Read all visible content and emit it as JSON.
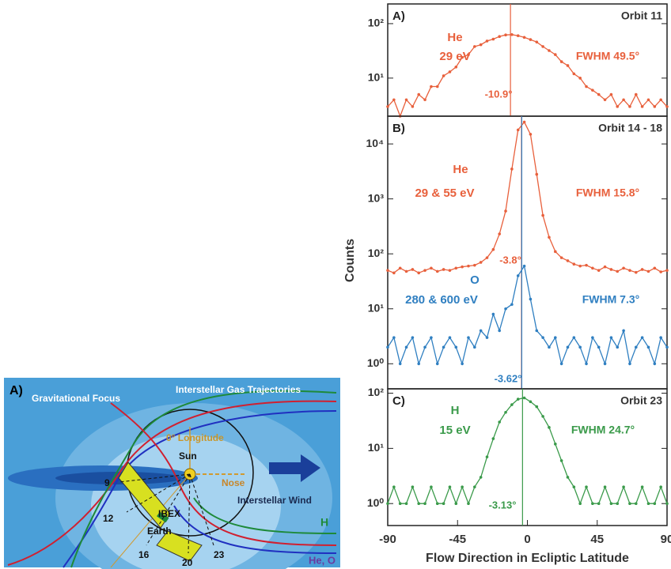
{
  "diagram": {
    "labels": [
      "A)",
      "Gravitational Focus",
      "Interstellar Gas Trajectories",
      "0° Longitude",
      "Sun",
      "Nose",
      "Interstellar Wind",
      "IBEX",
      "Earth",
      "9",
      "12",
      "16",
      "20",
      "23",
      "H",
      "He, O"
    ]
  },
  "chart_data": [
    {
      "type": "line",
      "title": "A)",
      "subtitle": "Orbit 11",
      "log_y": true,
      "xlim": [
        -90,
        90
      ],
      "ylim": [
        2,
        230
      ],
      "yticks": [
        {
          "value": 10,
          "label": "10¹"
        },
        {
          "value": 100,
          "label": "10²"
        }
      ],
      "x": [
        -90,
        -86,
        -82,
        -78,
        -74,
        -70,
        -66,
        -62,
        -58,
        -54,
        -50,
        -46,
        -42,
        -38,
        -34,
        -30,
        -26,
        -22,
        -18,
        -14,
        -10,
        -6,
        -2,
        2,
        6,
        10,
        14,
        18,
        22,
        26,
        30,
        34,
        38,
        42,
        46,
        50,
        54,
        58,
        62,
        66,
        70,
        74,
        78,
        82,
        86,
        90
      ],
      "series": [
        {
          "name": "He",
          "energy": "29 eV",
          "fwhm": "FWHM 49.5°",
          "center": -10.9,
          "center_label": "-10.9°",
          "color": "#e8603c",
          "values": [
            3,
            4,
            2,
            4,
            3,
            5,
            4,
            7,
            7,
            11,
            13,
            16,
            24,
            27,
            38,
            41,
            48,
            52,
            58,
            62,
            63,
            60,
            56,
            51,
            46,
            38,
            32,
            27,
            20,
            17,
            12,
            10,
            7,
            6,
            5,
            4,
            5,
            3,
            4,
            3,
            5,
            3,
            4,
            3,
            4,
            3
          ]
        }
      ]
    },
    {
      "type": "line",
      "title": "B)",
      "subtitle": "Orbit 14 - 18",
      "log_y": true,
      "y_label": "Counts",
      "xlim": [
        -90,
        90
      ],
      "ylim": [
        0.35,
        32000
      ],
      "yticks": [
        {
          "value": 1,
          "label": "10⁰"
        },
        {
          "value": 10,
          "label": "10¹"
        },
        {
          "value": 100,
          "label": "10²"
        },
        {
          "value": 1000,
          "label": "10³"
        },
        {
          "value": 10000,
          "label": "10⁴"
        }
      ],
      "x": [
        -90,
        -86,
        -82,
        -78,
        -74,
        -70,
        -66,
        -62,
        -58,
        -54,
        -50,
        -46,
        -42,
        -38,
        -34,
        -30,
        -26,
        -22,
        -18,
        -14,
        -10,
        -6,
        -2,
        2,
        6,
        10,
        14,
        18,
        22,
        26,
        30,
        34,
        38,
        42,
        46,
        50,
        54,
        58,
        62,
        66,
        70,
        74,
        78,
        82,
        86,
        90
      ],
      "series": [
        {
          "name": "He",
          "energy": "29 & 55 eV",
          "fwhm": "FWHM 15.8°",
          "center": -3.8,
          "center_label": "-3.8°",
          "color": "#e8603c",
          "values": [
            50,
            45,
            55,
            48,
            52,
            45,
            50,
            55,
            48,
            52,
            50,
            55,
            58,
            60,
            62,
            70,
            85,
            120,
            230,
            600,
            3500,
            18000,
            25000,
            15000,
            2800,
            500,
            200,
            110,
            85,
            75,
            65,
            60,
            62,
            55,
            50,
            58,
            52,
            48,
            55,
            50,
            46,
            52,
            48,
            55,
            47,
            50
          ]
        },
        {
          "name": "O",
          "energy": "280 & 600 eV",
          "fwhm": "FWHM 7.3°",
          "center": -3.62,
          "center_label": "-3.62°",
          "color": "#2f7fc1",
          "values": [
            2,
            3,
            1,
            2,
            3,
            1,
            2,
            3,
            1,
            2,
            3,
            2,
            1,
            3,
            2,
            4,
            3,
            8,
            4,
            10,
            12,
            40,
            60,
            15,
            4,
            3,
            2,
            3,
            1,
            2,
            3,
            2,
            1,
            3,
            2,
            1,
            3,
            2,
            4,
            1,
            2,
            3,
            2,
            1,
            3,
            2
          ]
        }
      ]
    },
    {
      "type": "line",
      "title": "C)",
      "subtitle": "Orbit 23",
      "log_y": true,
      "x_label": "Flow Direction in Ecliptic Latitude",
      "xlim": [
        -90,
        90
      ],
      "ylim": [
        0.4,
        120
      ],
      "xticks": [
        -90,
        -45,
        0,
        45,
        90
      ],
      "yticks": [
        {
          "value": 1,
          "label": "10⁰"
        },
        {
          "value": 10,
          "label": "10¹"
        },
        {
          "value": 100,
          "label": "10²"
        }
      ],
      "x": [
        -90,
        -86,
        -82,
        -78,
        -74,
        -70,
        -66,
        -62,
        -58,
        -54,
        -50,
        -46,
        -42,
        -38,
        -34,
        -30,
        -26,
        -22,
        -18,
        -14,
        -10,
        -6,
        -2,
        2,
        6,
        10,
        14,
        18,
        22,
        26,
        30,
        34,
        38,
        42,
        46,
        50,
        54,
        58,
        62,
        66,
        70,
        74,
        78,
        82,
        86,
        90
      ],
      "series": [
        {
          "name": "H",
          "energy": "15 eV",
          "fwhm": "FWHM 24.7°",
          "center": -3.13,
          "center_label": "-3.13°",
          "color": "#3a9a4a",
          "values": [
            1,
            2,
            1,
            1,
            2,
            1,
            1,
            2,
            1,
            1,
            2,
            1,
            2,
            1,
            2,
            3,
            7,
            15,
            30,
            45,
            62,
            78,
            82,
            70,
            57,
            38,
            24,
            12,
            6,
            3,
            2,
            1,
            2,
            1,
            1,
            2,
            1,
            1,
            2,
            1,
            1,
            2,
            1,
            1,
            2,
            1
          ]
        }
      ]
    }
  ]
}
